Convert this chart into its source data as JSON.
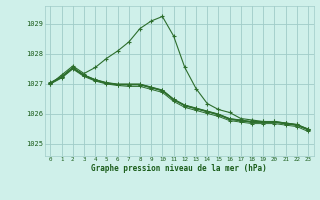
{
  "bg_color": "#cff0ea",
  "line_color": "#2d6e2d",
  "grid_color": "#a0ccc8",
  "text_color": "#1a5c1a",
  "xlabel": "Graphe pression niveau de la mer (hPa)",
  "ylim": [
    1024.6,
    1029.6
  ],
  "xlim": [
    -0.5,
    23.5
  ],
  "yticks": [
    1025,
    1026,
    1027,
    1028,
    1029
  ],
  "xticks": [
    0,
    1,
    2,
    3,
    4,
    5,
    6,
    7,
    8,
    9,
    10,
    11,
    12,
    13,
    14,
    15,
    16,
    17,
    18,
    19,
    20,
    21,
    22,
    23
  ],
  "series": [
    [
      1027.05,
      1027.25,
      1027.55,
      1027.3,
      1027.15,
      1027.05,
      1027.0,
      1027.0,
      1027.0,
      1026.9,
      1026.8,
      1026.5,
      1026.3,
      1026.2,
      1026.1,
      1026.0,
      1025.85,
      1025.8,
      1025.75,
      1025.75,
      1025.75,
      1025.7,
      1025.65,
      1025.5
    ],
    [
      1027.0,
      1027.2,
      1027.5,
      1027.25,
      1027.1,
      1027.0,
      1026.95,
      1026.92,
      1026.92,
      1026.82,
      1026.72,
      1026.42,
      1026.22,
      1026.12,
      1026.02,
      1025.92,
      1025.78,
      1025.73,
      1025.68,
      1025.68,
      1025.68,
      1025.63,
      1025.58,
      1025.42
    ],
    [
      1027.02,
      1027.22,
      1027.52,
      1027.28,
      1027.12,
      1027.02,
      1026.97,
      1026.97,
      1026.97,
      1026.87,
      1026.77,
      1026.47,
      1026.27,
      1026.17,
      1026.07,
      1025.97,
      1025.82,
      1025.77,
      1025.72,
      1025.72,
      1025.72,
      1025.67,
      1025.62,
      1025.47
    ],
    [
      1027.03,
      1027.23,
      1027.53,
      1027.29,
      1027.13,
      1027.03,
      1026.98,
      1026.98,
      1026.98,
      1026.88,
      1026.78,
      1026.48,
      1026.28,
      1026.18,
      1026.08,
      1025.98,
      1025.83,
      1025.78,
      1025.73,
      1025.73,
      1025.73,
      1025.68,
      1025.63,
      1025.48
    ],
    [
      1027.04,
      1027.24,
      1027.54,
      1027.3,
      1027.14,
      1027.04,
      1026.99,
      1026.99,
      1026.99,
      1026.89,
      1026.79,
      1026.49,
      1026.29,
      1026.19,
      1026.09,
      1025.99,
      1025.84,
      1025.79,
      1025.74,
      1025.74,
      1025.74,
      1025.69,
      1025.64,
      1025.49
    ]
  ],
  "spike_series_y": [
    1027.0,
    1027.3,
    1027.6,
    1027.35,
    1027.55,
    1027.85,
    1028.1,
    1028.4,
    1028.85,
    1029.1,
    1029.25,
    1028.6,
    1027.55,
    1026.85,
    1026.35,
    1026.15,
    1026.05,
    1025.85,
    1025.8,
    1025.75,
    1025.75,
    1025.7,
    1025.65,
    1025.5
  ]
}
